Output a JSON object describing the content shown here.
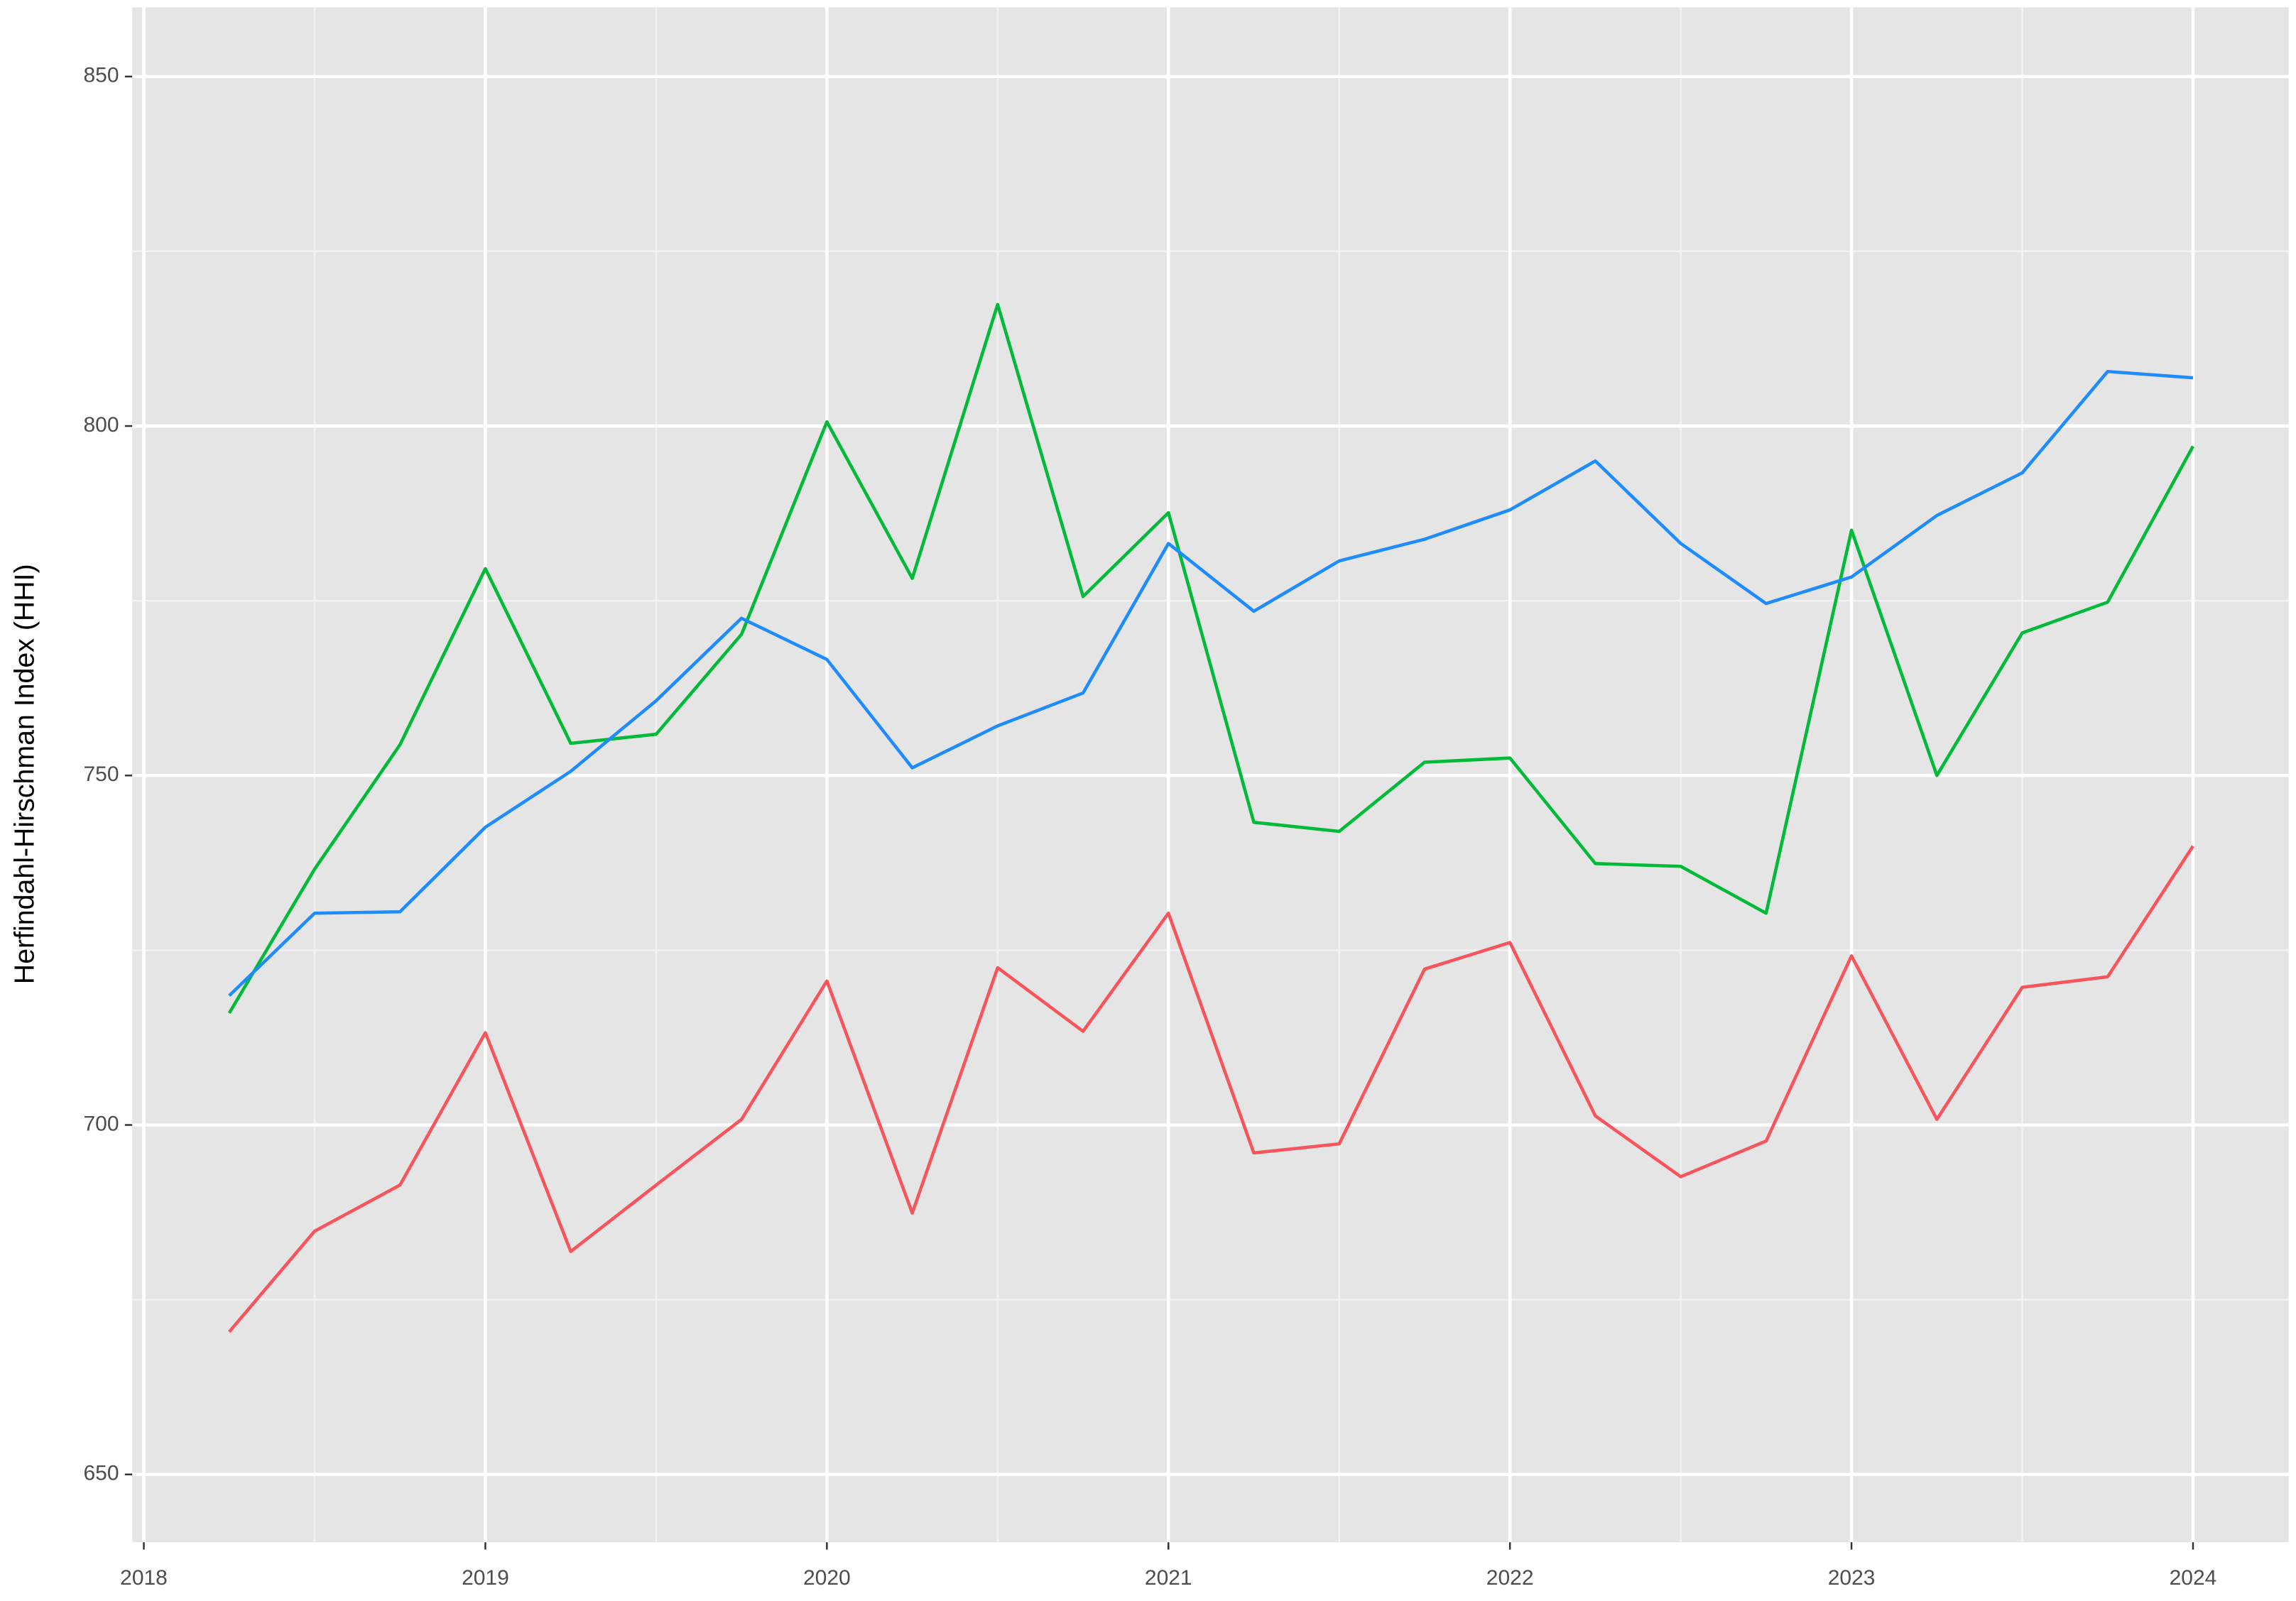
{
  "chart_data": {
    "type": "line",
    "y_label": "Herfindahl-Hirschman Index (HHI)",
    "x": [
      2018.25,
      2018.5,
      2018.75,
      2019,
      2019.25,
      2019.5,
      2019.75,
      2020,
      2020.25,
      2020.5,
      2020.75,
      2021,
      2021.25,
      2021.5,
      2021.75,
      2022,
      2022.25,
      2022.5,
      2022.75,
      2023,
      2023.25,
      2023.5,
      2023.75,
      2024
    ],
    "series": [
      {
        "color": "#F8545B",
        "values": [
          670.4,
          684.8,
          691.4,
          713.2,
          681.9,
          691.4,
          700.8,
          720.6,
          687.4,
          722.5,
          713.4,
          730.3,
          696.0,
          697.3,
          722.3,
          726.1,
          701.3,
          692.6,
          697.7,
          724.2,
          700.8,
          719.7,
          721.2,
          739.9
        ]
      },
      {
        "color": "#00BA38",
        "values": [
          716.0,
          736.6,
          754.4,
          779.6,
          754.6,
          755.9,
          770.2,
          800.6,
          778.2,
          817.4,
          775.6,
          787.6,
          743.3,
          742.0,
          751.9,
          752.5,
          737.4,
          737.0,
          730.3,
          785.1,
          750.0,
          770.4,
          774.8,
          797.1
        ]
      },
      {
        "color": "#1E8BFF",
        "values": [
          718.5,
          730.3,
          730.5,
          742.6,
          750.6,
          760.7,
          772.5,
          766.6,
          751.1,
          757.1,
          761.8,
          783.2,
          773.5,
          780.7,
          783.8,
          788.0,
          795.0,
          783.2,
          774.6,
          778.4,
          787.2,
          793.3,
          807.8,
          806.9
        ]
      }
    ],
    "xlim": [
      2017.966,
      2024.28
    ],
    "xticks": [
      2018,
      2019,
      2020,
      2021,
      2022,
      2023,
      2024
    ],
    "ylim": [
      640.3,
      859.9
    ],
    "yticks": [
      650,
      700,
      750,
      800,
      850
    ],
    "grid": true
  }
}
